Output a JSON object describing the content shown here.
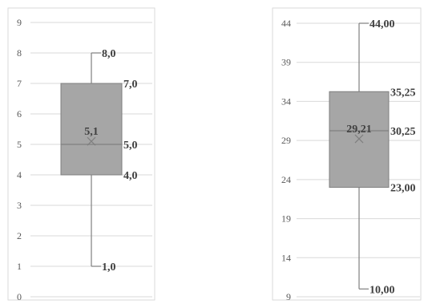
{
  "chart_data": [
    {
      "type": "box",
      "title": "",
      "xlabel": "",
      "ylabel": "",
      "ylim": [
        0,
        9
      ],
      "yticks": [
        0,
        1,
        2,
        3,
        4,
        5,
        6,
        7,
        8,
        9
      ],
      "grid": true,
      "box": {
        "min": 1.0,
        "q1": 4.0,
        "median": 5.0,
        "q3": 7.0,
        "max": 8.0,
        "mean": 5.1,
        "labels": {
          "min": "1,0",
          "q1": "4,0",
          "median": "5,0",
          "q3": "7,0",
          "max": "8,0",
          "mean": "5,1"
        }
      },
      "colors": {
        "box_fill": "#a6a6a6",
        "box_stroke": "#7f7f7f",
        "whisker": "#7f7f7f",
        "mean_marker": "#7f7f7f",
        "grid": "#d9d9d9"
      }
    },
    {
      "type": "box",
      "title": "",
      "xlabel": "",
      "ylabel": "",
      "ylim": [
        9,
        44
      ],
      "yticks": [
        9,
        14,
        19,
        24,
        29,
        34,
        39,
        44
      ],
      "grid": true,
      "box": {
        "min": 10.0,
        "q1": 23.0,
        "median": 30.25,
        "q3": 35.25,
        "max": 44.0,
        "mean": 29.21,
        "labels": {
          "min": "10,00",
          "q1": "23,00",
          "median": "30,25",
          "q3": "35,25",
          "max": "44,00",
          "mean": "29,21"
        }
      },
      "colors": {
        "box_fill": "#a6a6a6",
        "box_stroke": "#7f7f7f",
        "whisker": "#7f7f7f",
        "mean_marker": "#7f7f7f",
        "grid": "#d9d9d9"
      }
    }
  ]
}
